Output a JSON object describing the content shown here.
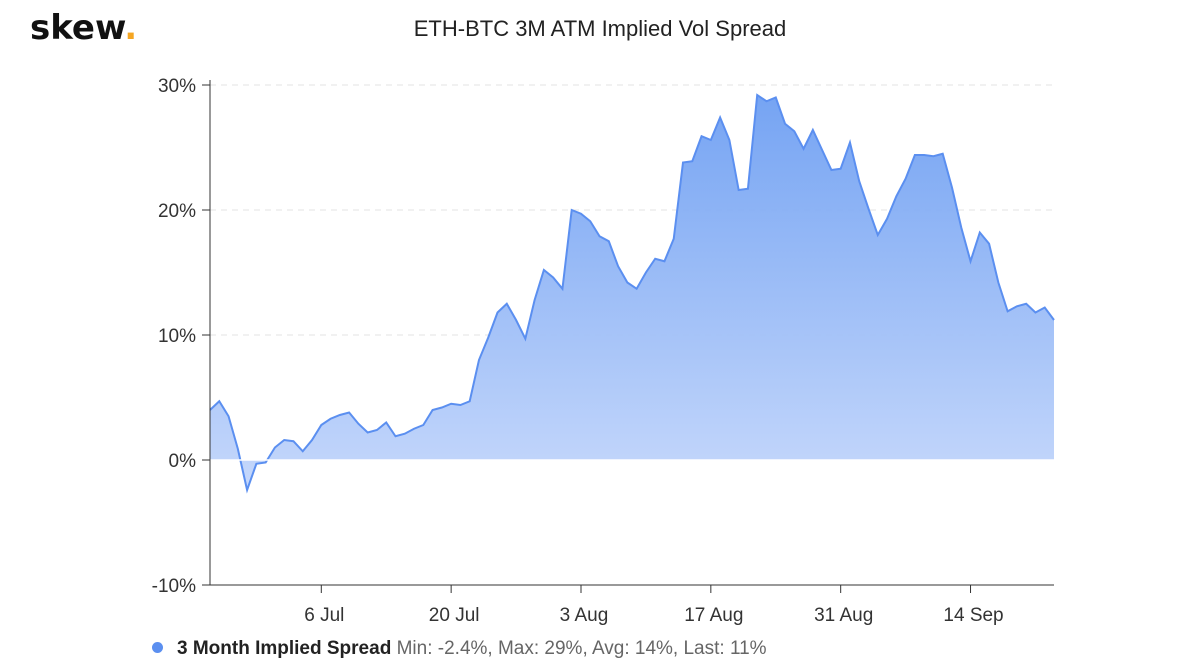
{
  "header": {
    "logo_text": "skew",
    "logo_dot": ".",
    "logo_dot_color": "#f5a623"
  },
  "chart_data": {
    "type": "area",
    "title": "ETH-BTC 3M ATM Implied Vol Spread",
    "xlabel": "",
    "ylabel": "",
    "x_ticks": [
      "6 Jul",
      "20 Jul",
      "3 Aug",
      "17 Aug",
      "31 Aug",
      "14 Sep"
    ],
    "y_ticks": [
      "30%",
      "20%",
      "10%",
      "0%",
      "-10%"
    ],
    "ylim": [
      -10,
      30
    ],
    "grid": true,
    "legend_position": "bottom-left",
    "series": [
      {
        "name": "3 Month Implied Spread",
        "color": "#5b8ff0",
        "x": [
          "24 Jun",
          "25 Jun",
          "26 Jun",
          "27 Jun",
          "28 Jun",
          "29 Jun",
          "30 Jun",
          "1 Jul",
          "2 Jul",
          "3 Jul",
          "4 Jul",
          "5 Jul",
          "6 Jul",
          "7 Jul",
          "8 Jul",
          "9 Jul",
          "10 Jul",
          "11 Jul",
          "12 Jul",
          "13 Jul",
          "14 Jul",
          "15 Jul",
          "16 Jul",
          "17 Jul",
          "18 Jul",
          "19 Jul",
          "20 Jul",
          "21 Jul",
          "22 Jul",
          "23 Jul",
          "24 Jul",
          "25 Jul",
          "26 Jul",
          "27 Jul",
          "28 Jul",
          "29 Jul",
          "30 Jul",
          "31 Jul",
          "1 Aug",
          "2 Aug",
          "3 Aug",
          "4 Aug",
          "5 Aug",
          "6 Aug",
          "7 Aug",
          "8 Aug",
          "9 Aug",
          "10 Aug",
          "11 Aug",
          "12 Aug",
          "13 Aug",
          "14 Aug",
          "15 Aug",
          "16 Aug",
          "17 Aug",
          "18 Aug",
          "19 Aug",
          "20 Aug",
          "21 Aug",
          "22 Aug",
          "23 Aug",
          "24 Aug",
          "25 Aug",
          "26 Aug",
          "27 Aug",
          "28 Aug",
          "29 Aug",
          "30 Aug",
          "31 Aug",
          "1 Sep",
          "2 Sep",
          "3 Sep",
          "4 Sep",
          "5 Sep",
          "6 Sep",
          "7 Sep",
          "8 Sep",
          "9 Sep",
          "10 Sep",
          "11 Sep",
          "12 Sep",
          "13 Sep",
          "14 Sep",
          "15 Sep",
          "16 Sep",
          "17 Sep",
          "18 Sep",
          "19 Sep",
          "20 Sep",
          "21 Sep",
          "22 Sep",
          "23 Sep"
        ],
        "values": [
          4.0,
          4.7,
          3.5,
          0.9,
          -2.4,
          -0.3,
          -0.2,
          1.0,
          1.6,
          1.5,
          0.7,
          1.6,
          2.8,
          3.3,
          3.6,
          3.8,
          2.9,
          2.2,
          2.4,
          3.0,
          1.9,
          2.1,
          2.5,
          2.8,
          4.0,
          4.2,
          4.5,
          4.4,
          4.7,
          8.0,
          9.8,
          11.8,
          12.5,
          11.2,
          9.7,
          12.8,
          15.2,
          14.6,
          13.7,
          20.0,
          19.7,
          19.1,
          17.9,
          17.5,
          15.5,
          14.2,
          13.7,
          15.0,
          16.1,
          15.9,
          17.7,
          23.8,
          23.9,
          25.9,
          25.6,
          27.4,
          25.6,
          21.6,
          21.7,
          29.2,
          28.7,
          29.0,
          26.9,
          26.3,
          24.9,
          26.4,
          24.8,
          23.2,
          23.3,
          25.4,
          22.3,
          20.1,
          18.0,
          19.3,
          21.1,
          22.5,
          24.4,
          24.4,
          24.3,
          24.5,
          21.8,
          18.6,
          15.9,
          18.2,
          17.3,
          14.2,
          11.9,
          12.3,
          12.5,
          11.8,
          12.2,
          11.2
        ]
      }
    ]
  },
  "legend": {
    "name": "3 Month Implied Spread",
    "stats": "Min: -2.4%, Max: 29%, Avg: 14%, Last: 11%"
  }
}
